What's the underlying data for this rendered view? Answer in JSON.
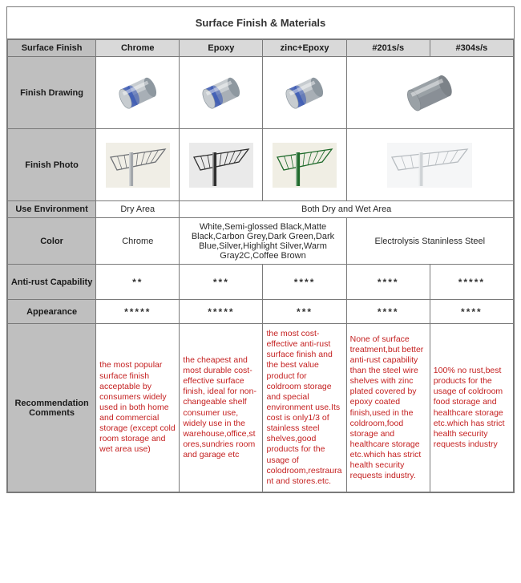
{
  "title": "Surface Finish & Materials",
  "row_labels": {
    "surface_finish": "Surface Finish",
    "finish_drawing": "Finish Drawing",
    "finish_photo": "Finish Photo",
    "use_env": "Use Environment",
    "color": "Color",
    "anti_rust": "Anti-rust Capability",
    "appearance": "Appearance",
    "rec": "Recommendation Comments"
  },
  "columns": [
    "Chrome",
    "Epoxy",
    "zinc+Epoxy",
    "#201s/s",
    "#304s/s"
  ],
  "use_env": {
    "chrome": "Dry Area",
    "rest": "Both Dry and Wet Area"
  },
  "color": {
    "chrome": "Chrome",
    "epoxy_group": "White,Semi-glossed Black,Matte Black,Carbon Grey,Dark Green,Dark Blue,Silver,Highlight Silver,Warm Gray2C,Coffee Brown",
    "ss_group": "Electrolysis  Staninless Steel"
  },
  "anti_rust": {
    "chrome": "**",
    "epoxy": "***",
    "zinc_epoxy": "****",
    "ss201": "****",
    "ss304": "*****"
  },
  "appearance": {
    "chrome": "*****",
    "epoxy": "*****",
    "zinc_epoxy": "***",
    "ss201": "****",
    "ss304": "****"
  },
  "recommendations": {
    "chrome": "the most popular surface finish acceptable by consumers widely used in both home and commercial storage (except cold room storage and wet area use)",
    "epoxy": "the cheapest and most durable cost-effective surface finish, ideal for non-changeable shelf consumer use, widely use in the warehouse,office,stores,sundries room and garage etc",
    "zinc_epoxy": "the most cost-effective anti-rust surface finish and the best value product for coldroom storage and special environment use.Its cost is only1/3 of stainless steel shelves,good products for the usage of colodroom,restraurant and stores.etc.",
    "ss201": "None of surface treatment,but better anti-rust capability than the steel wire shelves with zinc plated covered by epoxy coated finish,used in the coldroom,food storage and healthcare storage etc.which has strict health security requests industry.",
    "ss304": "100% no rust,best products for the usage of coldroom food storage and healthcare storage etc.which has strict health security requests industry"
  },
  "drawing": {
    "variants": {
      "chrome": {
        "body": "#c7ccd0",
        "shade": "#8e98a0",
        "band": "#3d5bb5"
      },
      "epoxy": {
        "body": "#c7ccd0",
        "shade": "#8e98a0",
        "band": "#3d5bb5"
      },
      "zinc": {
        "body": "#c7ccd0",
        "shade": "#8e98a0",
        "band": "#3d5bb5"
      },
      "ss": {
        "body": "#9aa1a6",
        "shade": "#7c8288",
        "band": null
      }
    }
  },
  "photo": {
    "variants": {
      "chrome": {
        "bg": "#f0eee6",
        "frame": "#6f7276",
        "post": "#a3a7ab"
      },
      "epoxy": {
        "bg": "#eaeaea",
        "frame": "#2f2f2f",
        "post": "#2f2f2f"
      },
      "zinc": {
        "bg": "#f0eee4",
        "frame": "#1f6a2b",
        "post": "#1f6a2b"
      },
      "ss": {
        "bg": "#f5f6f7",
        "frame": "#b7bcc0",
        "post": "#cfd3d6"
      }
    }
  }
}
